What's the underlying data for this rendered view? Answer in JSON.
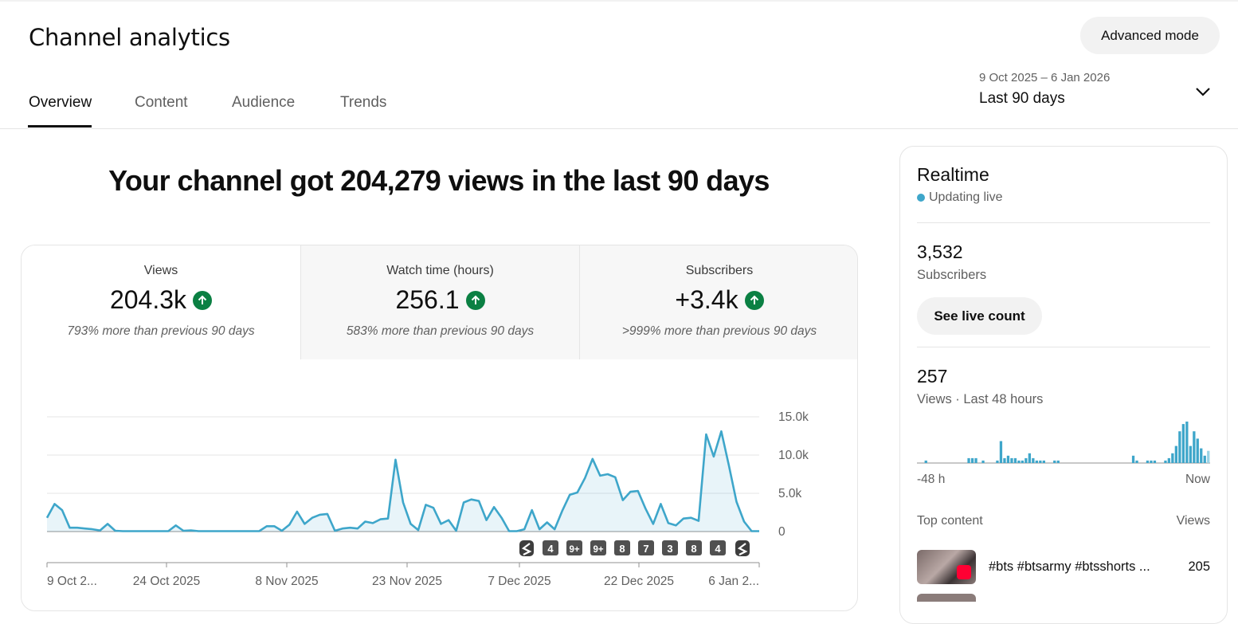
{
  "header": {
    "title": "Channel analytics",
    "advanced_mode": "Advanced mode",
    "tabs": [
      {
        "label": "Overview",
        "active": true
      },
      {
        "label": "Content",
        "active": false
      },
      {
        "label": "Audience",
        "active": false
      },
      {
        "label": "Trends",
        "active": false
      }
    ],
    "date_range": {
      "dates": "9 Oct 2025 – 6 Jan 2026",
      "label": "Last 90 days"
    }
  },
  "main": {
    "headline": "Your channel got 204,279 views in the last 90 days",
    "metrics": [
      {
        "label": "Views",
        "value": "204.3k",
        "note": "793% more than previous 90 days",
        "trend": "up"
      },
      {
        "label": "Watch time (hours)",
        "value": "256.1",
        "note": "583% more than previous 90 days",
        "trend": "up"
      },
      {
        "label": "Subscribers",
        "value": "+3.4k",
        "note": ">999% more than previous 90 days",
        "trend": "up"
      }
    ]
  },
  "chart_data": {
    "type": "area",
    "x_tick_labels": [
      "9 Oct 2...",
      "24 Oct 2025",
      "8 Nov 2025",
      "23 Nov 2025",
      "7 Dec 2025",
      "22 Dec 2025",
      "6 Jan 2..."
    ],
    "y_tick_labels": [
      "15.0k",
      "10.0k",
      "5.0k",
      "0"
    ],
    "ylim": [
      0,
      15000
    ],
    "grid": true,
    "color": "#3ea6ca",
    "series": [
      {
        "values": [
          1800,
          3600,
          2800,
          500,
          500,
          400,
          300,
          150,
          1000,
          100,
          50,
          50,
          50,
          50,
          50,
          50,
          50,
          800,
          100,
          150,
          50,
          50,
          50,
          50,
          50,
          50,
          50,
          50,
          50,
          700,
          700,
          100,
          900,
          2600,
          1000,
          1800,
          2200,
          2300,
          100,
          400,
          500,
          400,
          1300,
          1100,
          1600,
          1700,
          9400,
          3800,
          1000,
          200,
          3500,
          3100,
          1000,
          1500,
          100,
          3800,
          4200,
          4000,
          1500,
          3200,
          1800,
          50,
          50,
          300,
          2800,
          300,
          1200,
          300,
          2700,
          4800,
          5100,
          7000,
          9500,
          7300,
          7500,
          7100,
          4100,
          5200,
          5300,
          3000,
          1000,
          3600,
          1100,
          800,
          1700,
          1800,
          1400,
          12700,
          9800,
          13100,
          8600,
          3900,
          1300,
          50,
          50
        ]
      }
    ],
    "markers": [
      "shorts",
      "4",
      "9+",
      "9+",
      "8",
      "7",
      "3",
      "8",
      "4",
      "shorts"
    ]
  },
  "realtime": {
    "title": "Realtime",
    "status": "Updating live",
    "subscribers_value": "3,532",
    "subscribers_label": "Subscribers",
    "live_count_button": "See live count",
    "views_value": "257",
    "views_label": "Views · Last 48 hours",
    "axis_start": "-48 h",
    "axis_end": "Now",
    "hourly_views": [
      0,
      0,
      1,
      0,
      0,
      0,
      0,
      0,
      0,
      0,
      0,
      0,
      0,
      0,
      2,
      2,
      2,
      0,
      1,
      0,
      0,
      0,
      1,
      9,
      2,
      3,
      2,
      2,
      1,
      1,
      2,
      4,
      2,
      1,
      1,
      1,
      0,
      0,
      1,
      1,
      0,
      0,
      0,
      0,
      0,
      0,
      0,
      0,
      0,
      0,
      0,
      0,
      0,
      0,
      0,
      0,
      0,
      0,
      0,
      0,
      3,
      1,
      0,
      0,
      1,
      1,
      1,
      0,
      0,
      1,
      2,
      4,
      7,
      13,
      16,
      17,
      7,
      13,
      10,
      6,
      3,
      5
    ],
    "top_content_label": "Top content",
    "top_views_label": "Views",
    "top_content": [
      {
        "title": "#bts #btsarmy #btsshorts ...",
        "views": "205"
      }
    ]
  }
}
